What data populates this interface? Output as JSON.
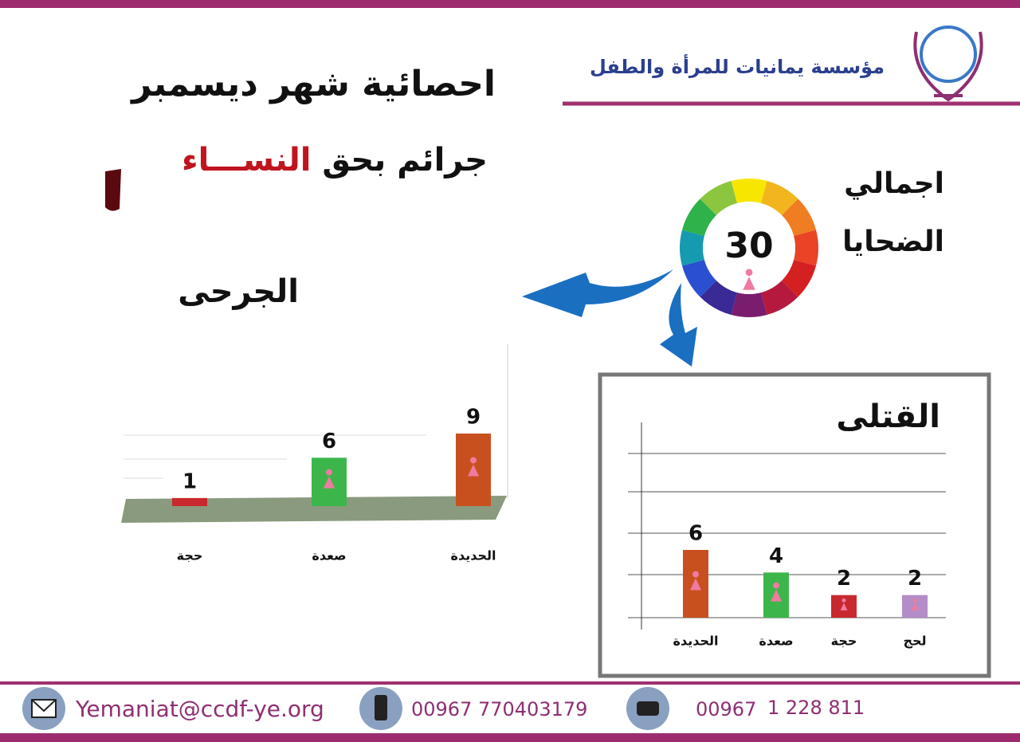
{
  "header": {
    "organization": "مؤسسة  يمانيات للمرأة والطفل",
    "title": "احصائية شهر ديسمبر",
    "subtitle_part1": "جرائم  بحق",
    "subtitle_part2": "النســـاء"
  },
  "total": {
    "label_line1": "اجمالي",
    "label_line2": "الضحايا",
    "value": 30
  },
  "chart_data": [
    {
      "type": "bar",
      "title": "الجرحى",
      "categories": [
        "حجة",
        "صعدة",
        "الحديدة"
      ],
      "values": [
        1,
        6,
        9
      ],
      "colors": [
        "#c8282e",
        "#3cb64a",
        "#c8501e"
      ]
    },
    {
      "type": "bar",
      "title": "القتلى",
      "categories": [
        "الحديدة",
        "صعدة",
        "حجة",
        "لحج"
      ],
      "values": [
        6,
        4,
        2,
        2
      ],
      "colors": [
        "#c8501e",
        "#3cb64a",
        "#c8282e",
        "#b48cc8"
      ],
      "grid": true
    }
  ],
  "footer": {
    "email": "Yemaniat@ccdf-ye.org",
    "mobile": "00967 770403179",
    "phone_code": "00967",
    "phone_number": "1 228 811"
  }
}
